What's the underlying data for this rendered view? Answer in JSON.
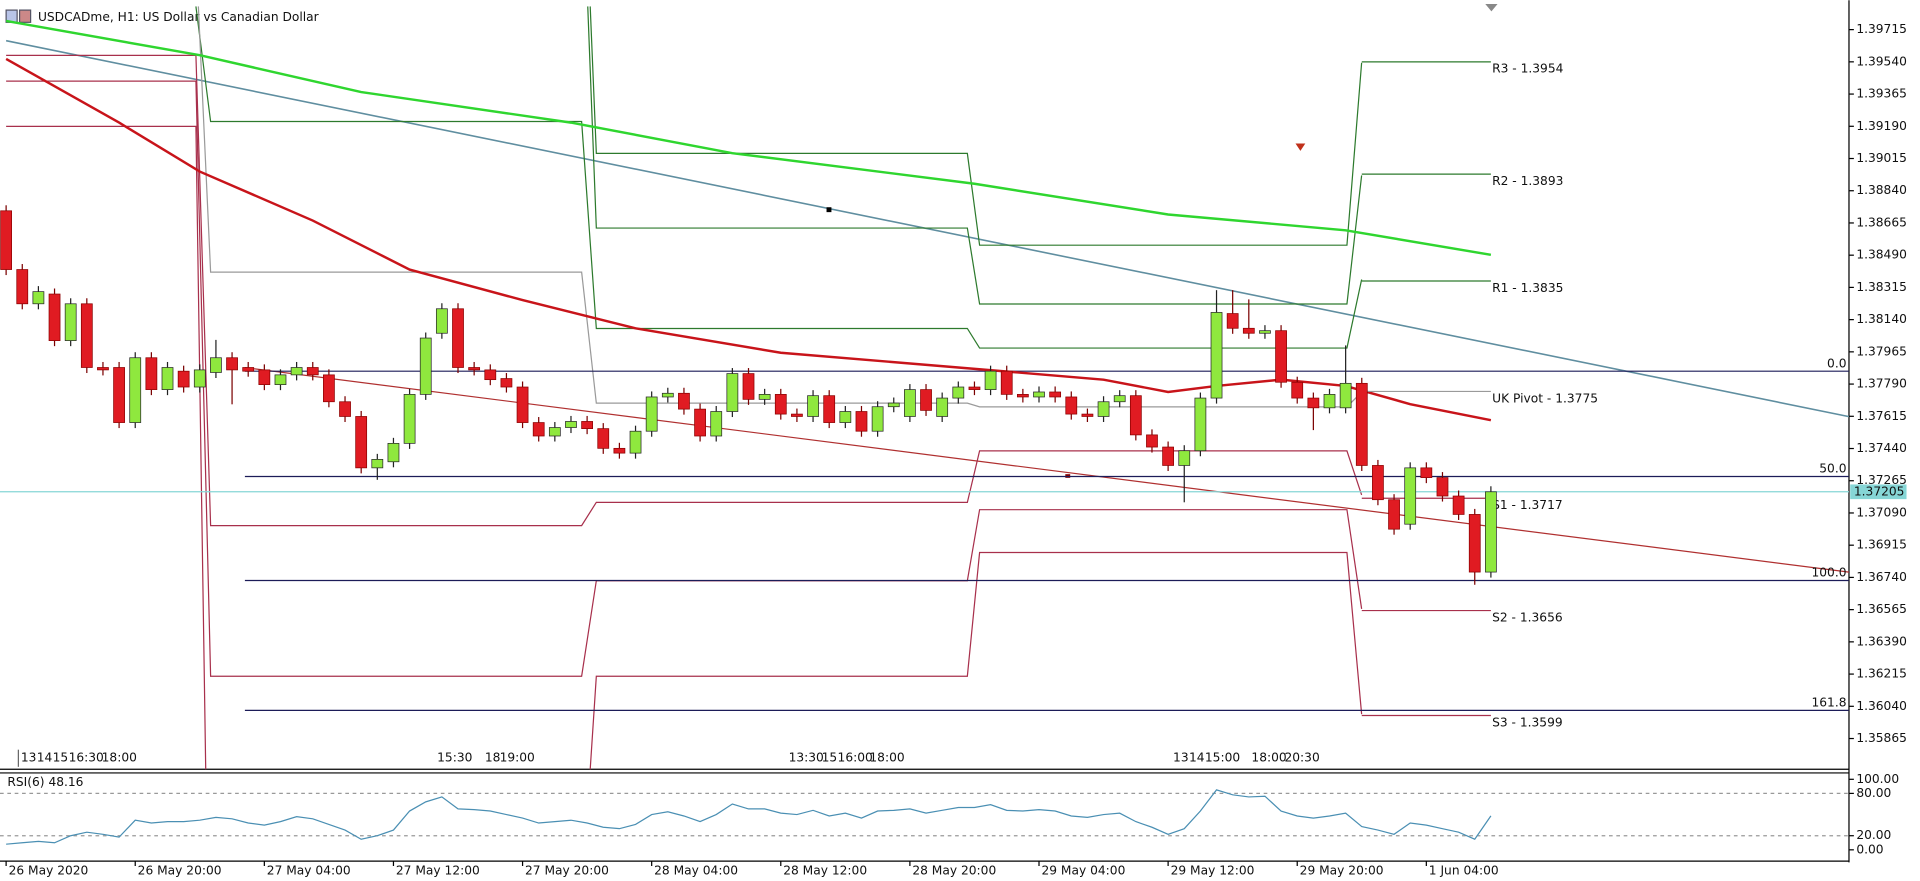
{
  "header": {
    "title": "USDCADme, H1:  US Dollar vs Canadian Dollar"
  },
  "chart_data": [
    {
      "type": "candlestick",
      "categories": [
        "26 May 2020",
        null,
        null,
        null,
        null,
        null,
        null,
        null,
        "26 May 20:00",
        null,
        null,
        null,
        null,
        null,
        null,
        null,
        "27 May 04:00",
        null,
        null,
        null,
        null,
        null,
        null,
        null,
        "27 May 12:00",
        null,
        null,
        null,
        null,
        null,
        null,
        null,
        "27 May 20:00",
        null,
        null,
        null,
        null,
        null,
        null,
        null,
        "28 May 04:00",
        null,
        null,
        null,
        null,
        null,
        null,
        null,
        "28 May 12:00",
        null,
        null,
        null,
        null,
        null,
        null,
        null,
        "28 May 20:00",
        null,
        null,
        null,
        null,
        null,
        null,
        null,
        "29 May 04:00",
        null,
        null,
        null,
        null,
        null,
        null,
        null,
        "29 May 12:00",
        null,
        null,
        null,
        null,
        null,
        null,
        null,
        "29 May 20:00",
        null,
        null,
        null,
        null,
        null,
        null,
        null,
        "1 Jun 04:00",
        null,
        null,
        null,
        null
      ],
      "open": [
        1.38731,
        1.38412,
        1.38226,
        1.38279,
        1.38026,
        1.38226,
        1.3788,
        1.3788,
        1.37581,
        1.37933,
        1.3776,
        1.3786,
        1.37774,
        1.37853,
        1.37933,
        1.3788,
        1.37867,
        1.37787,
        1.3784,
        1.3788,
        1.3784,
        1.37694,
        1.37614,
        1.37335,
        1.37368,
        1.37468,
        1.37734,
        1.38066,
        1.38199,
        1.3788,
        1.37867,
        1.3782,
        1.37774,
        1.37581,
        1.37508,
        1.37554,
        1.37587,
        1.37548,
        1.37441,
        1.37415,
        1.37534,
        1.3772,
        1.3774,
        1.37654,
        1.37508,
        1.37641,
        1.37847,
        1.37707,
        1.37734,
        1.37627,
        1.37614,
        1.37727,
        1.37581,
        1.37641,
        1.37534,
        1.37667,
        1.37614,
        1.3776,
        1.37614,
        1.37714,
        1.37774,
        1.3776,
        1.3786,
        1.37734,
        1.3772,
        1.37747,
        1.3772,
        1.37627,
        1.37614,
        1.37694,
        1.37727,
        1.37514,
        1.37448,
        1.37348,
        1.37428,
        1.37714,
        1.38173,
        1.38093,
        1.38066,
        1.3808,
        1.378,
        1.37714,
        1.37661,
        1.37661,
        1.37794,
        1.37348,
        1.37162,
        1.37029,
        1.37335,
        1.37282,
        1.37182,
        1.37082,
        1.36769
      ],
      "high": [
        1.38761,
        1.38442,
        1.38322,
        1.38309,
        1.38256,
        1.38256,
        1.3791,
        1.3791,
        1.37963,
        1.37963,
        1.3791,
        1.3789,
        1.37897,
        1.3803,
        1.37963,
        1.3791,
        1.37897,
        1.3787,
        1.3791,
        1.3791,
        1.3787,
        1.37724,
        1.37644,
        1.37411,
        1.37498,
        1.37764,
        1.3807,
        1.38229,
        1.38229,
        1.3791,
        1.37897,
        1.3785,
        1.37804,
        1.37611,
        1.37584,
        1.37617,
        1.37617,
        1.37578,
        1.37471,
        1.37564,
        1.3775,
        1.3777,
        1.3777,
        1.37684,
        1.37671,
        1.37877,
        1.37877,
        1.37764,
        1.37764,
        1.37657,
        1.37757,
        1.37757,
        1.37671,
        1.37671,
        1.37697,
        1.37717,
        1.3779,
        1.3779,
        1.37744,
        1.37804,
        1.37804,
        1.3789,
        1.3789,
        1.37764,
        1.37777,
        1.37777,
        1.3775,
        1.37657,
        1.37724,
        1.37757,
        1.37757,
        1.37544,
        1.37478,
        1.37458,
        1.37744,
        1.383,
        1.383,
        1.3825,
        1.3811,
        1.3811,
        1.3783,
        1.37744,
        1.37764,
        1.38,
        1.37824,
        1.37378,
        1.37192,
        1.37365,
        1.37365,
        1.37312,
        1.37212,
        1.37112,
        1.37235
      ],
      "low": [
        1.38382,
        1.38196,
        1.38196,
        1.37996,
        1.37996,
        1.3785,
        1.37837,
        1.37551,
        1.37551,
        1.3773,
        1.3773,
        1.37744,
        1.37744,
        1.37823,
        1.3768,
        1.3783,
        1.37757,
        1.37757,
        1.3781,
        1.3781,
        1.37664,
        1.37584,
        1.37305,
        1.3727,
        1.37338,
        1.37438,
        1.37704,
        1.38036,
        1.3785,
        1.37837,
        1.37784,
        1.37744,
        1.37551,
        1.37478,
        1.37478,
        1.37524,
        1.37518,
        1.37411,
        1.37385,
        1.37385,
        1.37504,
        1.3769,
        1.37624,
        1.37478,
        1.37478,
        1.37611,
        1.37677,
        1.37677,
        1.37597,
        1.37584,
        1.37584,
        1.37551,
        1.37551,
        1.37504,
        1.37504,
        1.37637,
        1.37584,
        1.37617,
        1.37584,
        1.37684,
        1.3773,
        1.3773,
        1.37704,
        1.3769,
        1.3769,
        1.3769,
        1.37597,
        1.37584,
        1.37584,
        1.37664,
        1.37484,
        1.37418,
        1.37318,
        1.37148,
        1.37398,
        1.37684,
        1.38063,
        1.38036,
        1.38036,
        1.3777,
        1.37684,
        1.3754,
        1.37631,
        1.37631,
        1.37318,
        1.37132,
        1.36972,
        1.36999,
        1.37252,
        1.37152,
        1.37052,
        1.367,
        1.36739
      ],
      "close": [
        1.38412,
        1.38226,
        1.38292,
        1.38026,
        1.38226,
        1.3788,
        1.37867,
        1.37581,
        1.37933,
        1.3776,
        1.3788,
        1.37774,
        1.37867,
        1.37933,
        1.37867,
        1.3786,
        1.37787,
        1.3784,
        1.3788,
        1.3784,
        1.37694,
        1.37614,
        1.37335,
        1.37381,
        1.37468,
        1.37734,
        1.3804,
        1.38199,
        1.3788,
        1.37867,
        1.37814,
        1.37774,
        1.37581,
        1.37508,
        1.37554,
        1.37587,
        1.37548,
        1.37441,
        1.37415,
        1.37534,
        1.3772,
        1.3774,
        1.37654,
        1.37508,
        1.37641,
        1.37847,
        1.37707,
        1.37734,
        1.37627,
        1.37614,
        1.37727,
        1.37581,
        1.37641,
        1.37534,
        1.37667,
        1.37687,
        1.3776,
        1.37647,
        1.37714,
        1.37774,
        1.3776,
        1.3786,
        1.37734,
        1.3772,
        1.37747,
        1.3772,
        1.37627,
        1.37614,
        1.37694,
        1.37727,
        1.37514,
        1.37448,
        1.37348,
        1.37428,
        1.37714,
        1.38179,
        1.38093,
        1.38066,
        1.3808,
        1.378,
        1.37714,
        1.37661,
        1.37734,
        1.37794,
        1.37348,
        1.37162,
        1.37002,
        1.37335,
        1.37282,
        1.37182,
        1.37082,
        1.36769,
        1.37205
      ],
      "up_color": "#8fe83e",
      "down_color": "#e01b22",
      "ylim": [
        1.35698,
        1.39841
      ],
      "yticks": [
        1.39715,
        {
          "value": 1.3954,
          "label": "1.39540"
        },
        1.39365,
        {
          "value": 1.3919,
          "label": "1.39190"
        },
        1.39015,
        {
          "value": 1.3884,
          "label": "1.38840"
        },
        1.38665,
        {
          "value": 1.3849,
          "label": "1.38490"
        },
        1.38315,
        {
          "value": 1.3814,
          "label": "1.38140"
        },
        1.37965,
        {
          "value": 1.3779,
          "label": "1.37790"
        },
        1.37615,
        {
          "value": 1.3744,
          "label": "1.37440"
        },
        1.37265,
        {
          "value": 1.3709,
          "label": "1.37090"
        },
        1.36915,
        {
          "value": 1.3674,
          "label": "1.36740"
        },
        1.36565,
        {
          "value": 1.3639,
          "label": "1.36390"
        },
        1.36215,
        {
          "value": 1.3604,
          "label": "1.36040"
        },
        1.35865
      ],
      "current_price": 1.37205,
      "current_price_color": "#86d6d6",
      "moving_averages": [
        {
          "color": "#2fd62f",
          "x": [
            0,
            12,
            22,
            35,
            45,
            60,
            72,
            83,
            92
          ],
          "values": [
            1.39762,
            1.39576,
            1.39376,
            1.3921,
            1.39044,
            1.38878,
            1.38711,
            1.38625,
            1.38492
          ]
        },
        {
          "color": "#c8141a",
          "x": [
            0,
            7,
            12,
            19,
            25,
            32,
            39,
            48,
            59,
            68,
            72,
            75,
            79,
            83,
            87,
            92
          ],
          "values": [
            1.39556,
            1.3921,
            1.38944,
            1.38678,
            1.38412,
            1.38246,
            1.38093,
            1.3796,
            1.3788,
            1.37814,
            1.37747,
            1.3778,
            1.37814,
            1.3778,
            1.37681,
            1.37594
          ]
        }
      ],
      "pivots": [
        {
          "value": 1.3954,
          "label": "R3 - 1.3954",
          "color": "#2d7a2d"
        },
        {
          "value": 1.3893,
          "label": "R2 - 1.3893",
          "color": "#2d7a2d"
        },
        {
          "value": 1.3835,
          "label": "R1 - 1.3835",
          "color": "#2d7a2d"
        },
        {
          "value": 1.3775,
          "label": "UK Pivot - 1.3775",
          "color": "#9a9a9a"
        },
        {
          "value": 1.3717,
          "label": "S1 - 1.3717",
          "color": "#a8304c"
        },
        {
          "value": 1.3656,
          "label": "S2 - 1.3656",
          "color": "#a8304c"
        },
        {
          "value": 1.3599,
          "label": "S3 - 1.3599",
          "color": "#a8304c"
        }
      ],
      "fibonacci": {
        "color": "#1c1c58",
        "levels": [
          {
            "value": 0,
            "label": "0.0"
          },
          {
            "value": 50,
            "label": "50.0"
          },
          {
            "value": 100,
            "label": "100.0"
          },
          161.8
        ],
        "prices": [
          1.3786,
          1.37288,
          1.36723,
          1.36018
        ]
      },
      "event_markers": [
        "13",
        "14",
        "15",
        "16:30",
        "18:00",
        "15:30",
        "18",
        "19:00",
        "13:30",
        "15",
        "16:00",
        "18:00",
        "13",
        "14",
        "15:00",
        "18:00",
        "20:30"
      ]
    },
    {
      "type": "line",
      "title": "RSI(6) 48.16",
      "color": "#4a8fb3",
      "values": [
        8,
        10,
        12,
        10,
        20,
        25,
        22,
        18,
        42,
        38,
        40,
        40,
        42,
        46,
        44,
        38,
        35,
        40,
        47,
        44,
        36,
        28,
        15,
        20,
        28,
        55,
        68,
        75,
        58,
        57,
        55,
        50,
        45,
        38,
        40,
        42,
        38,
        32,
        30,
        36,
        50,
        54,
        48,
        40,
        50,
        65,
        58,
        58,
        52,
        50,
        56,
        48,
        52,
        45,
        55,
        56,
        58,
        52,
        56,
        60,
        60,
        64,
        56,
        55,
        57,
        55,
        48,
        46,
        50,
        52,
        40,
        32,
        22,
        30,
        55,
        85,
        78,
        75,
        76,
        55,
        48,
        45,
        48,
        52,
        33,
        28,
        22,
        38,
        35,
        30,
        25,
        15,
        48.16
      ],
      "ylim": [
        -16,
        109
      ],
      "yticks": [
        {
          "value": 100,
          "label": "100.00"
        },
        {
          "value": 80,
          "label": "80.00"
        },
        {
          "value": 20,
          "label": "20.00"
        },
        {
          "value": 0,
          "label": "0.00"
        }
      ],
      "levels": [
        80,
        20
      ]
    }
  ]
}
